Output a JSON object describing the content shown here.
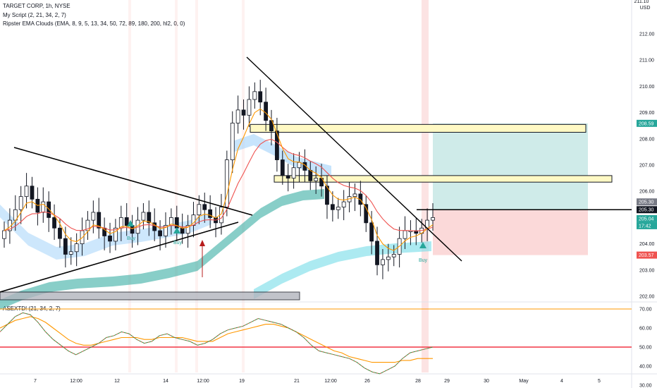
{
  "header": {
    "symbol_line": "TARGET CORP, 1h, NYSE",
    "script_line": "My Script (2, 21, 34, 2, 7)",
    "ema_line": "Ripster EMA Clouds (EMA, 8, 9, 5, 13, 34, 50, 72, 89, 180, 200, hl2, 0, 0)",
    "indicator_line": "ASEXTD! (21, 34, 2, 7)"
  },
  "price_axis": {
    "currency": "USD",
    "top_value": "211.10",
    "ticks": [
      "212.00",
      "211.00",
      "210.00",
      "209.00",
      "208.00",
      "207.00",
      "206.00",
      "205.00",
      "204.00",
      "203.00",
      "202.00"
    ]
  },
  "price_tags": [
    {
      "value": "208.59",
      "color": "#26a69a"
    },
    {
      "value": "205.30",
      "color": "#787b86"
    },
    {
      "value": "205.30",
      "color": "#131722"
    },
    {
      "value": "205.04",
      "color": "#26a69a"
    },
    {
      "value": "17:42",
      "color": "#26a69a"
    },
    {
      "value": "203.57",
      "color": "#ef5350"
    }
  ],
  "osc_axis": {
    "ticks": [
      "70.00",
      "60.00",
      "50.00",
      "40.00",
      "30.00"
    ]
  },
  "time_axis": {
    "labels": [
      "7",
      "12:00",
      "12",
      "14",
      "12:00",
      "19",
      "21",
      "12:00",
      "26",
      "28",
      "29",
      "30",
      "May",
      "4",
      "5"
    ]
  },
  "signals": {
    "buy_label": "Buy"
  },
  "colors": {
    "up": "#26a69a",
    "down": "#ef5350",
    "candle": "#131722",
    "target_zone": "#26a69a",
    "stop_zone": "#ef5350",
    "band_green": "#26a69a",
    "band_blue": "#80deea",
    "band_light_blue": "#90caf9"
  },
  "chart_data": [
    {
      "type": "line",
      "title": "TARGET CORP, 1h, NYSE",
      "ylim": [
        201.6,
        212.4
      ],
      "y_ticks": [
        202,
        203,
        204,
        205,
        206,
        207,
        208,
        209,
        210,
        211,
        212
      ],
      "x_labels": [
        "7",
        "12:00",
        "12",
        "14",
        "12:00",
        "19",
        "21",
        "12:00",
        "26",
        "28",
        "29",
        "30",
        "May",
        "4",
        "5"
      ],
      "series": [
        {
          "values": [
            204.5,
            204.9,
            205.3,
            205.8,
            206.2,
            205.7,
            205.2,
            205.6,
            205.0,
            204.6,
            204.2,
            203.6,
            203.7,
            204.0,
            204.5,
            204.9,
            205.2,
            204.6,
            204.3,
            204.1,
            204.6,
            205.0,
            204.7,
            204.4,
            204.9,
            205.2,
            204.8,
            204.5,
            204.3,
            204.7,
            205.0,
            204.6,
            204.4,
            204.7,
            205.1,
            205.5,
            205.3,
            205.0,
            204.8,
            205.4,
            207.2,
            208.6,
            209.1,
            208.9,
            209.5,
            209.8,
            209.4,
            208.7,
            208.3,
            207.2,
            206.6,
            206.5,
            206.9,
            207.1,
            206.8,
            206.4,
            206.5,
            206.2,
            205.5,
            205.3,
            205.4,
            205.6,
            205.8,
            205.9,
            205.5,
            204.8,
            204.1,
            203.2,
            203.4,
            203.5,
            203.6,
            204.2,
            204.5,
            204.5,
            204.4,
            204.6,
            204.9,
            205.0
          ]
        }
      ],
      "levels": {
        "target": 208.59,
        "entry": 205.3,
        "current": 205.04,
        "stop": 203.57
      },
      "zones": [
        {
          "low": 208.25,
          "high": 208.55
        },
        {
          "low": 206.35,
          "high": 206.6
        }
      ]
    },
    {
      "type": "line",
      "title": "ASEXTD! (21, 34, 2, 7)",
      "ylim": [
        27,
        73
      ],
      "y_ticks": [
        30,
        40,
        50,
        60,
        70
      ],
      "levels": [
        70,
        50
      ],
      "series": [
        {
          "values": [
            58,
            62,
            66,
            68,
            67,
            63,
            58,
            54,
            51,
            48,
            46,
            48,
            50,
            52,
            55,
            56,
            58,
            57,
            54,
            52,
            53,
            56,
            57,
            55,
            54,
            53,
            51,
            52,
            54,
            57,
            59,
            60,
            61,
            63,
            65,
            64,
            63,
            62,
            60,
            58,
            55,
            51,
            48,
            47,
            46,
            45,
            44,
            42,
            39,
            37,
            36,
            38,
            40,
            44,
            47,
            48,
            49,
            50
          ]
        },
        {
          "values": [
            60,
            62,
            64,
            65,
            66,
            65,
            63,
            60,
            57,
            54,
            52,
            51,
            51,
            52,
            53,
            54,
            55,
            55,
            55,
            54,
            54,
            55,
            55,
            55,
            55,
            54,
            53,
            53,
            53,
            55,
            57,
            58,
            59,
            60,
            61,
            62,
            62,
            61,
            60,
            58,
            56,
            54,
            52,
            50,
            48,
            47,
            45,
            44,
            43,
            42,
            42,
            42,
            42,
            43,
            43,
            44,
            44,
            44
          ]
        }
      ]
    }
  ]
}
